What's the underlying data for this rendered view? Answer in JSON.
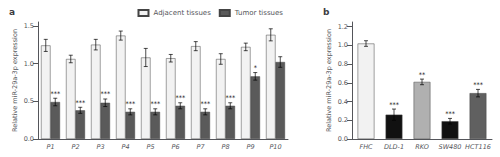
{
  "chart_data": [
    {
      "type": "bar",
      "title": "a",
      "categories": [
        "P1",
        "P2",
        "P3",
        "P4",
        "P5",
        "P6",
        "P7",
        "P8",
        "P9",
        "P10"
      ],
      "ylabel": "Relative miR-29a-3p expression",
      "ylim": [
        0,
        1.55
      ],
      "yticks": [
        {
          "value": 0.0,
          "label": "0.0"
        },
        {
          "value": 0.5,
          "label": "0.5"
        },
        {
          "value": 1.0,
          "label": "1.0"
        },
        {
          "value": 1.5,
          "label": "1.5"
        }
      ],
      "grid": false,
      "legend": "upper right",
      "series": [
        {
          "name": "Adjacent tissues",
          "color": "#f2f2f2",
          "values": [
            1.24,
            1.06,
            1.25,
            1.37,
            1.08,
            1.07,
            1.23,
            1.06,
            1.22,
            1.38
          ],
          "errors": [
            0.08,
            0.05,
            0.07,
            0.06,
            0.12,
            0.05,
            0.06,
            0.07,
            0.05,
            0.08
          ]
        },
        {
          "name": "Tumor tissues",
          "color": "#5a5a5a",
          "values": [
            0.49,
            0.38,
            0.48,
            0.36,
            0.36,
            0.44,
            0.36,
            0.44,
            0.83,
            1.02
          ],
          "errors": [
            0.05,
            0.04,
            0.05,
            0.04,
            0.04,
            0.04,
            0.04,
            0.04,
            0.05,
            0.07
          ],
          "annotations": [
            "***",
            "***",
            "***",
            "***",
            "***",
            "***",
            "***",
            "***",
            "*",
            null
          ]
        }
      ]
    },
    {
      "type": "bar",
      "title": "b",
      "categories": [
        "FHC",
        "DLD-1",
        "RKO",
        "SW480",
        "HCT116"
      ],
      "ylabel": "Relative miR-29a-3p expression",
      "ylim": [
        0,
        1.25
      ],
      "yticks": [
        {
          "value": 0.0,
          "label": "0.0"
        },
        {
          "value": 0.2,
          "label": "0.2"
        },
        {
          "value": 0.4,
          "label": "0.4"
        },
        {
          "value": 0.6,
          "label": "0.6"
        },
        {
          "value": 0.8,
          "label": "0.8"
        },
        {
          "value": 1.0,
          "label": "1.0"
        },
        {
          "value": 1.2,
          "label": "1.2"
        }
      ],
      "grid": false,
      "values": [
        1.02,
        0.26,
        0.61,
        0.19,
        0.49
      ],
      "errors": [
        0.03,
        0.06,
        0.03,
        0.03,
        0.04
      ],
      "colors": [
        "#f2f2f2",
        "#111111",
        "#b0b0b0",
        "#111111",
        "#606060"
      ],
      "annotations": [
        null,
        "***",
        "**",
        "***",
        "***"
      ]
    }
  ]
}
